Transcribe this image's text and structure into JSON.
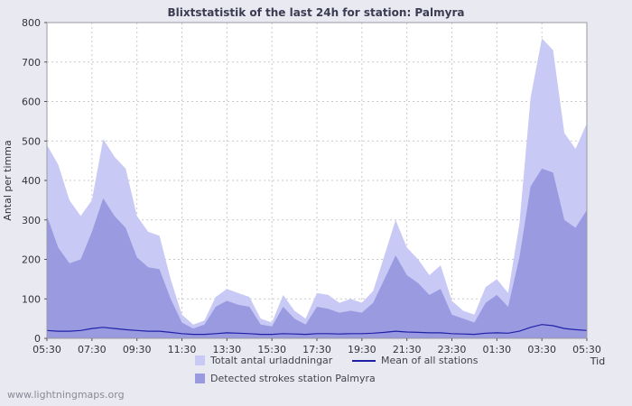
{
  "chart_data": {
    "type": "area",
    "title": "Blixtstatistik of the last 24h for station: Palmyra",
    "xlabel": "Tid",
    "ylabel": "Antal per timma",
    "ylim": [
      0,
      800
    ],
    "yticks": [
      0,
      100,
      200,
      300,
      400,
      500,
      600,
      700,
      800
    ],
    "xtick_labels": [
      "05:30",
      "07:30",
      "09:30",
      "11:30",
      "13:30",
      "15:30",
      "17:30",
      "19:30",
      "21:30",
      "23:30",
      "01:30",
      "03:30",
      "05:30"
    ],
    "xtick_every": 4,
    "grid": true,
    "legend_position": "bottom",
    "series": [
      {
        "name": "Totalt antal urladdningar",
        "type": "area",
        "color": "#c9c9f6",
        "values": [
          490,
          440,
          350,
          310,
          350,
          505,
          460,
          430,
          310,
          270,
          260,
          150,
          60,
          35,
          45,
          105,
          125,
          115,
          105,
          50,
          40,
          110,
          70,
          50,
          115,
          110,
          90,
          100,
          90,
          120,
          210,
          300,
          230,
          200,
          160,
          185,
          95,
          70,
          60,
          130,
          150,
          115,
          290,
          610,
          760,
          730,
          520,
          480,
          545
        ]
      },
      {
        "name": "Detected strokes station Palmyra",
        "type": "area",
        "color": "#9a9ae0",
        "values": [
          310,
          230,
          190,
          200,
          270,
          355,
          310,
          280,
          205,
          180,
          175,
          100,
          40,
          25,
          35,
          80,
          95,
          85,
          80,
          35,
          30,
          80,
          50,
          35,
          80,
          75,
          65,
          70,
          65,
          90,
          150,
          210,
          160,
          140,
          110,
          125,
          60,
          50,
          40,
          90,
          110,
          80,
          205,
          385,
          430,
          420,
          300,
          280,
          325
        ]
      },
      {
        "name": "Mean of all stations",
        "type": "line",
        "color": "#2121a8",
        "values": [
          20,
          18,
          18,
          20,
          25,
          28,
          25,
          22,
          20,
          18,
          18,
          15,
          12,
          10,
          10,
          12,
          14,
          13,
          12,
          10,
          10,
          12,
          11,
          10,
          12,
          12,
          11,
          12,
          12,
          13,
          15,
          18,
          16,
          15,
          14,
          14,
          12,
          11,
          10,
          13,
          14,
          13,
          18,
          28,
          35,
          32,
          25,
          22,
          20
        ]
      }
    ]
  },
  "footer": {
    "watermark": "www.lightningmaps.org"
  }
}
